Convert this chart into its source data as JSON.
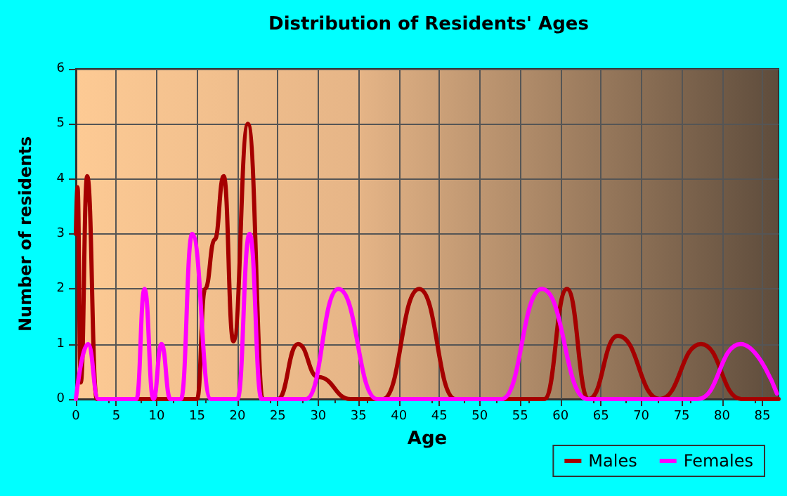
{
  "chart_data": {
    "type": "line",
    "title": "Distribution of Residents' Ages",
    "xlabel": "Age",
    "ylabel": "Number of residents",
    "xlim": [
      0,
      87
    ],
    "xticks": [
      0,
      5,
      10,
      15,
      20,
      25,
      30,
      35,
      40,
      45,
      50,
      55,
      60,
      65,
      70,
      75,
      80,
      85
    ],
    "ylim": [
      0,
      6
    ],
    "yticks": [
      0,
      1,
      2,
      3,
      4,
      5,
      6
    ],
    "grid": true,
    "legend": "bottom right",
    "marker": "none",
    "line_style": "solid",
    "series": [
      {
        "name": "Males",
        "color": "#a50000",
        "x": [
          0,
          0.2,
          0.6,
          1.4,
          2.6,
          15,
          16,
          17.2,
          18.3,
          19.5,
          21.3,
          23.3,
          25,
          27.5,
          30,
          34,
          38,
          42.5,
          47,
          55,
          58,
          60.8,
          63.5,
          67.1,
          72.3,
          77.4,
          82.4,
          87
        ],
        "values": [
          3,
          3.85,
          0.3,
          4.05,
          0,
          0,
          2,
          2.9,
          4.05,
          1.05,
          5,
          0,
          0,
          1,
          0.4,
          0,
          0,
          2,
          0,
          0,
          0,
          2,
          0,
          1.15,
          0,
          1,
          0,
          0
        ]
      },
      {
        "name": "Females",
        "color": "#ff00ff",
        "x": [
          0,
          1.5,
          2.8,
          7.5,
          8.5,
          9.6,
          10.6,
          11.7,
          13,
          14.4,
          16.7,
          20,
          21.5,
          23,
          28.5,
          32.5,
          37.3,
          52.7,
          57.7,
          63.3,
          72.5,
          77,
          82.3,
          86.8
        ],
        "values": [
          0,
          1,
          0,
          0,
          2,
          0,
          1,
          0,
          0,
          3,
          0,
          0,
          3,
          0,
          0,
          2,
          0,
          0,
          2,
          0,
          0,
          0,
          1,
          0.1
        ]
      }
    ]
  }
}
